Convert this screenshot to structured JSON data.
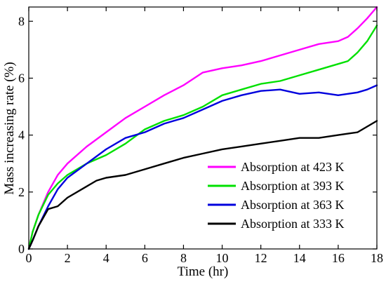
{
  "chart_data": {
    "type": "line",
    "title": "",
    "xlabel": "Time (hr)",
    "ylabel": "Mass increasing rate (%)",
    "xlim": [
      0,
      18
    ],
    "ylim": [
      0,
      8.5
    ],
    "xticks": [
      0,
      2,
      4,
      6,
      8,
      10,
      12,
      14,
      16,
      18
    ],
    "yticks": [
      0,
      2,
      4,
      6,
      8
    ],
    "grid": false,
    "legend_position": "bottom-right",
    "series": [
      {
        "name": "Absorption at 423 K",
        "color": "#ff00ff",
        "x": [
          0,
          0.2,
          0.5,
          1,
          1.5,
          2,
          3,
          4,
          5,
          6,
          7,
          8,
          9,
          10,
          11,
          12,
          13,
          14,
          15,
          16,
          16.5,
          17,
          17.5,
          18
        ],
        "y": [
          0,
          0.6,
          1.2,
          2.0,
          2.6,
          3.0,
          3.6,
          4.1,
          4.6,
          5.0,
          5.4,
          5.75,
          6.2,
          6.35,
          6.45,
          6.6,
          6.8,
          7.0,
          7.2,
          7.3,
          7.45,
          7.75,
          8.1,
          8.5
        ]
      },
      {
        "name": "Absorption at 393 K",
        "color": "#00e000",
        "x": [
          0,
          0.2,
          0.5,
          1,
          1.5,
          2,
          3,
          4,
          5,
          6,
          7,
          8,
          9,
          10,
          11,
          12,
          13,
          14,
          15,
          16,
          16.5,
          17,
          17.5,
          18
        ],
        "y": [
          0,
          0.6,
          1.2,
          1.9,
          2.3,
          2.6,
          3.0,
          3.3,
          3.7,
          4.2,
          4.5,
          4.7,
          5.0,
          5.4,
          5.6,
          5.8,
          5.9,
          6.1,
          6.3,
          6.5,
          6.6,
          6.9,
          7.3,
          7.85
        ]
      },
      {
        "name": "Absorption at 363 K",
        "color": "#0000dd",
        "x": [
          0,
          0.2,
          0.5,
          1,
          1.5,
          2,
          3,
          4,
          5,
          6,
          7,
          8,
          9,
          10,
          11,
          12,
          13,
          14,
          15,
          16,
          16.5,
          17,
          17.5,
          18
        ],
        "y": [
          0,
          0.3,
          0.8,
          1.5,
          2.1,
          2.5,
          3.0,
          3.5,
          3.9,
          4.1,
          4.4,
          4.6,
          4.9,
          5.2,
          5.4,
          5.55,
          5.6,
          5.45,
          5.5,
          5.4,
          5.45,
          5.5,
          5.6,
          5.75
        ]
      },
      {
        "name": "Absorption at 333 K",
        "color": "#000000",
        "x": [
          0,
          0.2,
          0.5,
          1,
          1.5,
          2,
          3,
          3.5,
          4,
          5,
          6,
          7,
          8,
          9,
          10,
          11,
          12,
          13,
          14,
          15,
          16,
          16.5,
          17,
          17.5,
          18
        ],
        "y": [
          0,
          0.3,
          0.8,
          1.4,
          1.5,
          1.8,
          2.2,
          2.4,
          2.5,
          2.6,
          2.8,
          3.0,
          3.2,
          3.35,
          3.5,
          3.6,
          3.7,
          3.8,
          3.9,
          3.9,
          4.0,
          4.05,
          4.1,
          4.3,
          4.5
        ]
      }
    ]
  }
}
